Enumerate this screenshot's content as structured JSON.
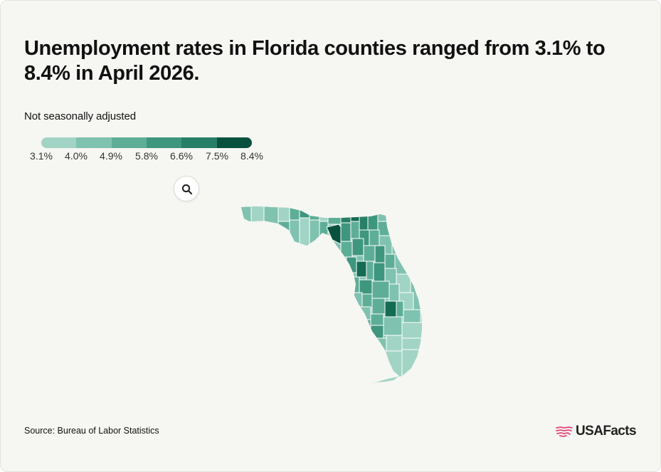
{
  "title": "Unemployment rates in Florida counties ranged from 3.1% to 8.4% in April 2026.",
  "subtitle": "Not seasonally adjusted",
  "legend": {
    "ticks": [
      "3.1%",
      "4.0%",
      "4.9%",
      "5.8%",
      "6.6%",
      "7.5%",
      "8.4%"
    ],
    "colors": [
      "#a2d4c5",
      "#7fc2af",
      "#5eae97",
      "#3f967f",
      "#287f68",
      "#156b54",
      "#07513e"
    ]
  },
  "map": {
    "type": "choropleth",
    "region": "Florida counties",
    "measure": "Unemployment rate",
    "min": 3.1,
    "max": 8.4,
    "zoom_icon": "search-icon"
  },
  "footer": {
    "source": "Source: Bureau of Labor Statistics",
    "logo_text": "USAFacts",
    "logo_icon": "usa-map-stripes-icon",
    "logo_color": "#e0457b"
  },
  "colors": {
    "background": "#f6f6f2",
    "county_border": "#ffffff"
  }
}
